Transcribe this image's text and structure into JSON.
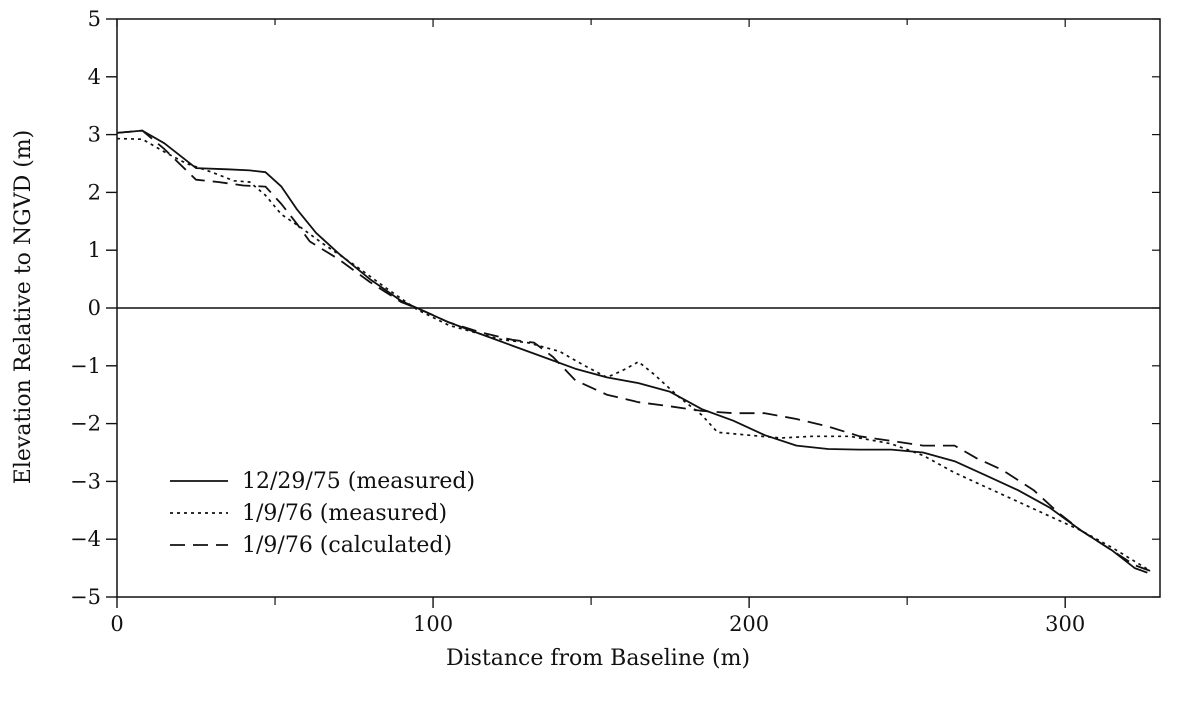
{
  "chart_data": {
    "type": "line",
    "title": "",
    "xlabel": "Distance from Baseline (m)",
    "ylabel": "Elevation Relative to NGVD (m)",
    "xlim": [
      0,
      330
    ],
    "ylim": [
      -5,
      5
    ],
    "x_ticks": [
      0,
      100,
      200,
      300
    ],
    "x_minor_ticks": [
      50,
      150,
      250
    ],
    "y_ticks": [
      -5,
      -4,
      -3,
      -2,
      -1,
      0,
      1,
      2,
      3,
      4,
      5
    ],
    "x_tick_labels": [
      "0",
      "100",
      "200",
      "300"
    ],
    "y_tick_labels": [
      "−5",
      "−4",
      "−3",
      "−2",
      "−1",
      "0",
      "1",
      "2",
      "3",
      "4",
      "5"
    ],
    "zero_line": true,
    "grid": false,
    "legend_position": "bottom-left",
    "series": [
      {
        "name": "12/29/75 (measured)",
        "style": "solid",
        "color": "#111111",
        "points": [
          [
            0,
            3.03
          ],
          [
            8,
            3.07
          ],
          [
            15,
            2.85
          ],
          [
            25,
            2.42
          ],
          [
            35,
            2.4
          ],
          [
            42,
            2.38
          ],
          [
            47,
            2.35
          ],
          [
            52,
            2.1
          ],
          [
            57,
            1.7
          ],
          [
            63,
            1.3
          ],
          [
            70,
            0.95
          ],
          [
            80,
            0.5
          ],
          [
            90,
            0.12
          ],
          [
            97,
            -0.05
          ],
          [
            105,
            -0.25
          ],
          [
            115,
            -0.45
          ],
          [
            125,
            -0.65
          ],
          [
            135,
            -0.85
          ],
          [
            145,
            -1.05
          ],
          [
            155,
            -1.2
          ],
          [
            165,
            -1.3
          ],
          [
            175,
            -1.45
          ],
          [
            185,
            -1.75
          ],
          [
            195,
            -1.95
          ],
          [
            205,
            -2.2
          ],
          [
            215,
            -2.38
          ],
          [
            225,
            -2.44
          ],
          [
            235,
            -2.45
          ],
          [
            245,
            -2.45
          ],
          [
            255,
            -2.5
          ],
          [
            265,
            -2.65
          ],
          [
            275,
            -2.9
          ],
          [
            285,
            -3.15
          ],
          [
            295,
            -3.45
          ],
          [
            305,
            -3.85
          ],
          [
            315,
            -4.2
          ],
          [
            322,
            -4.5
          ],
          [
            326,
            -4.58
          ]
        ]
      },
      {
        "name": "1/9/76 (measured)",
        "style": "dotted",
        "color": "#111111",
        "points": [
          [
            0,
            2.93
          ],
          [
            8,
            2.92
          ],
          [
            15,
            2.7
          ],
          [
            22,
            2.5
          ],
          [
            30,
            2.35
          ],
          [
            37,
            2.2
          ],
          [
            42,
            2.18
          ],
          [
            47,
            1.95
          ],
          [
            52,
            1.62
          ],
          [
            58,
            1.4
          ],
          [
            65,
            1.12
          ],
          [
            75,
            0.75
          ],
          [
            85,
            0.35
          ],
          [
            95,
            -0.03
          ],
          [
            105,
            -0.3
          ],
          [
            115,
            -0.45
          ],
          [
            122,
            -0.55
          ],
          [
            130,
            -0.6
          ],
          [
            140,
            -0.75
          ],
          [
            148,
            -1.0
          ],
          [
            155,
            -1.2
          ],
          [
            160,
            -1.08
          ],
          [
            165,
            -0.93
          ],
          [
            170,
            -1.15
          ],
          [
            178,
            -1.55
          ],
          [
            185,
            -1.85
          ],
          [
            190,
            -2.15
          ],
          [
            200,
            -2.2
          ],
          [
            210,
            -2.25
          ],
          [
            220,
            -2.22
          ],
          [
            232,
            -2.22
          ],
          [
            245,
            -2.35
          ],
          [
            255,
            -2.55
          ],
          [
            265,
            -2.85
          ],
          [
            275,
            -3.1
          ],
          [
            285,
            -3.35
          ],
          [
            295,
            -3.6
          ],
          [
            305,
            -3.85
          ],
          [
            315,
            -4.15
          ],
          [
            327,
            -4.55
          ]
        ]
      },
      {
        "name": "1/9/76 (calculated)",
        "style": "dashed",
        "color": "#111111",
        "points": [
          [
            0,
            3.03
          ],
          [
            8,
            3.07
          ],
          [
            15,
            2.75
          ],
          [
            25,
            2.22
          ],
          [
            32,
            2.18
          ],
          [
            40,
            2.12
          ],
          [
            47,
            2.1
          ],
          [
            52,
            1.8
          ],
          [
            57,
            1.45
          ],
          [
            61,
            1.15
          ],
          [
            70,
            0.85
          ],
          [
            80,
            0.45
          ],
          [
            90,
            0.1
          ],
          [
            97,
            -0.05
          ],
          [
            105,
            -0.25
          ],
          [
            115,
            -0.42
          ],
          [
            125,
            -0.55
          ],
          [
            132,
            -0.6
          ],
          [
            138,
            -0.85
          ],
          [
            145,
            -1.25
          ],
          [
            155,
            -1.5
          ],
          [
            165,
            -1.63
          ],
          [
            175,
            -1.7
          ],
          [
            185,
            -1.78
          ],
          [
            195,
            -1.82
          ],
          [
            205,
            -1.82
          ],
          [
            215,
            -1.92
          ],
          [
            225,
            -2.05
          ],
          [
            235,
            -2.22
          ],
          [
            245,
            -2.3
          ],
          [
            255,
            -2.38
          ],
          [
            265,
            -2.38
          ],
          [
            272,
            -2.6
          ],
          [
            280,
            -2.8
          ],
          [
            290,
            -3.15
          ],
          [
            298,
            -3.55
          ],
          [
            305,
            -3.85
          ],
          [
            315,
            -4.2
          ],
          [
            322,
            -4.45
          ],
          [
            327,
            -4.55
          ]
        ]
      }
    ]
  }
}
